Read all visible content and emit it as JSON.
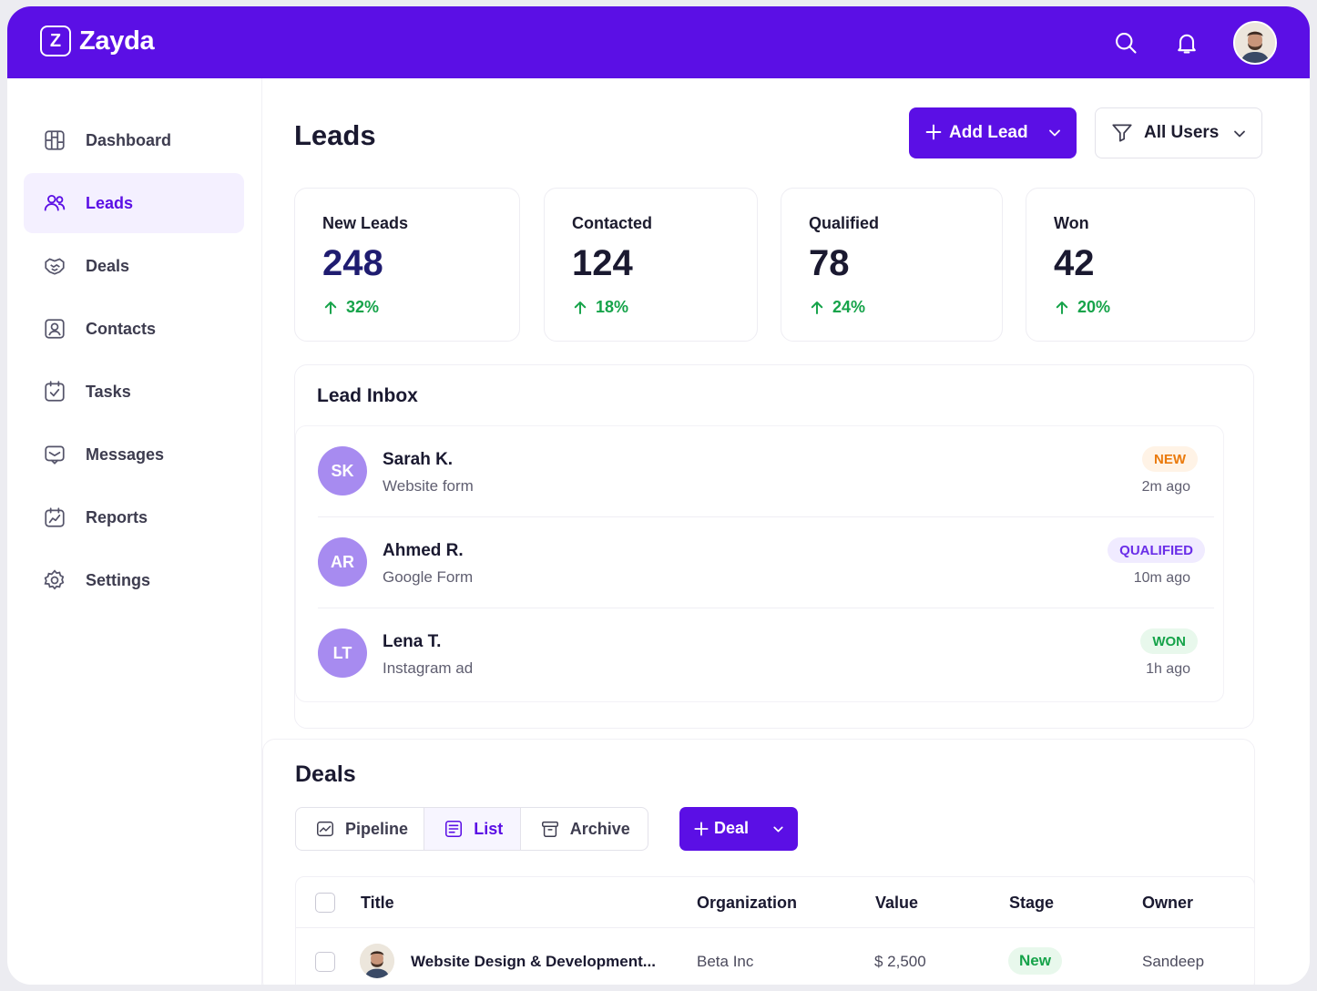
{
  "app": {
    "name": "Zayda",
    "logo_letter": "Z"
  },
  "topbar": {
    "icons": [
      "search-icon",
      "bell-icon"
    ],
    "user_avatar": "user-avatar"
  },
  "sidebar": {
    "items": [
      {
        "label": "Dashboard",
        "icon": "dashboard-icon",
        "active": false
      },
      {
        "label": "Leads",
        "icon": "users-icon",
        "active": true
      },
      {
        "label": "Deals",
        "icon": "handshake-icon",
        "active": false
      },
      {
        "label": "Contacts",
        "icon": "contact-icon",
        "active": false
      },
      {
        "label": "Tasks",
        "icon": "calendar-check-icon",
        "active": false
      },
      {
        "label": "Messages",
        "icon": "message-icon",
        "active": false
      },
      {
        "label": "Reports",
        "icon": "reports-icon",
        "active": false
      },
      {
        "label": "Settings",
        "icon": "gear-icon",
        "active": false
      }
    ]
  },
  "page": {
    "title": "Leads"
  },
  "actions": {
    "add_lead": "Add Lead",
    "all_users": "All Users"
  },
  "stats": [
    {
      "label": "New Leads",
      "value": "248",
      "delta": "32%"
    },
    {
      "label": "Contacted",
      "value": "124",
      "delta": "18%"
    },
    {
      "label": "Qualified",
      "value": "78",
      "delta": "24%"
    },
    {
      "label": "Won",
      "value": "42",
      "delta": "20%"
    }
  ],
  "inbox": {
    "title": "Lead Inbox",
    "leads": [
      {
        "initials": "SK",
        "name": "Sarah K.",
        "source": "Website form",
        "status": "NEW",
        "time": "2m ago"
      },
      {
        "initials": "AR",
        "name": "Ahmed R.",
        "source": "Google Form",
        "status": "QUALIFIED",
        "time": "10m ago"
      },
      {
        "initials": "LT",
        "name": "Lena T.",
        "source": "Instagram ad",
        "status": "WON",
        "time": "1h ago"
      }
    ]
  },
  "deals": {
    "title": "Deals",
    "views": [
      {
        "label": "Pipeline",
        "active": false
      },
      {
        "label": "List",
        "active": true
      },
      {
        "label": "Archive",
        "active": false
      }
    ],
    "add_deal": "Deal",
    "columns": [
      "Title",
      "Organization",
      "Value",
      "Stage",
      "Owner"
    ],
    "rows": [
      {
        "title": "Website Design & Development...",
        "organization": "Beta Inc",
        "value": "$ 2,500",
        "stage": "New",
        "owner": "Sandeep"
      }
    ]
  },
  "colors": {
    "brand": "#5b0fe5",
    "success": "#16a34a",
    "warning": "#ea7a0c"
  }
}
